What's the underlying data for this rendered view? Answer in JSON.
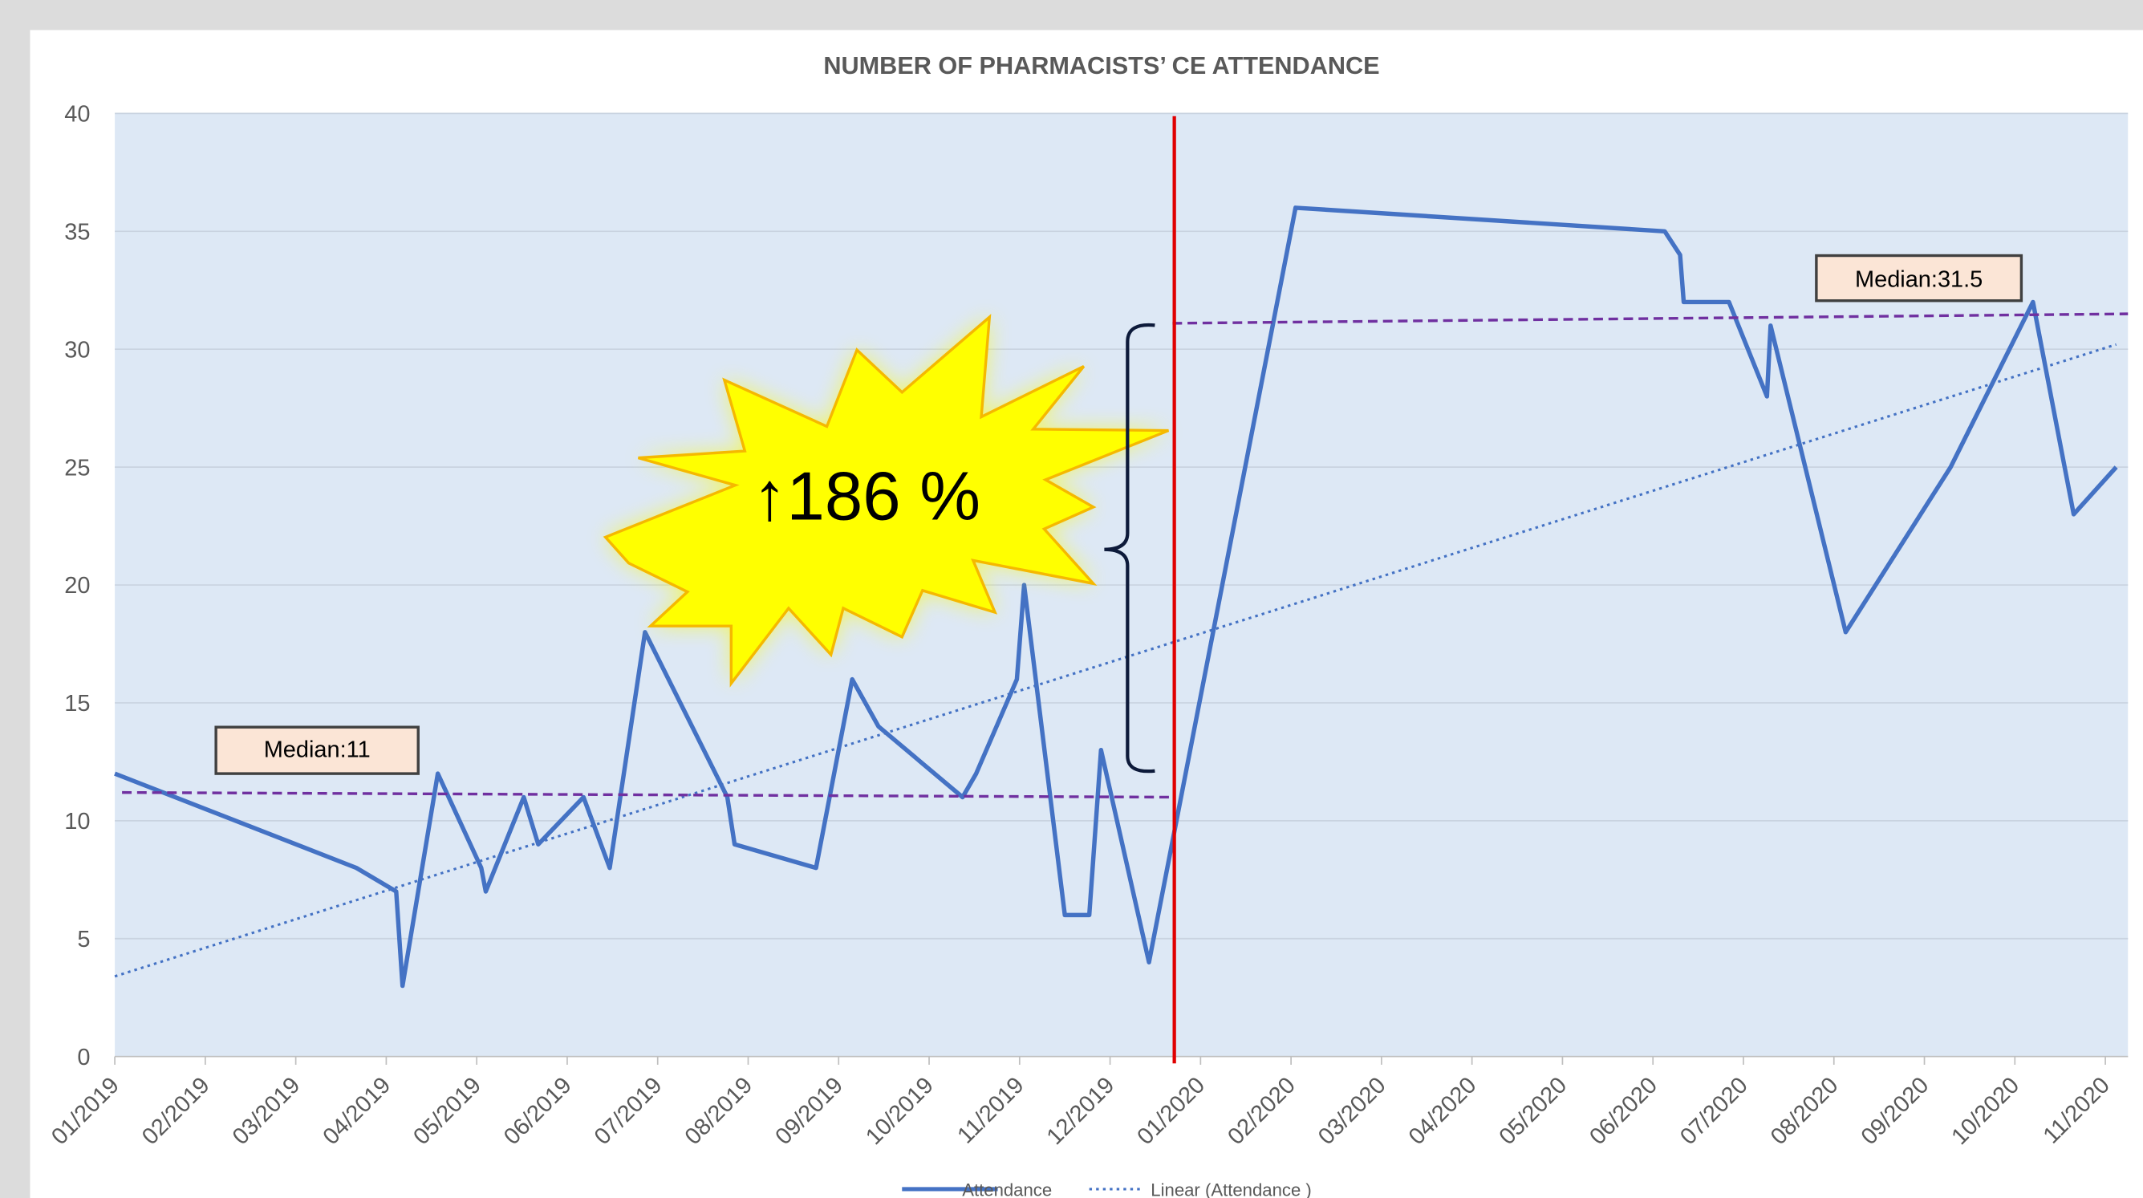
{
  "chart_data": {
    "type": "line",
    "title": "NUMBER OF PHARMACISTS’ CE ATTENDANCE",
    "xlim": [
      0,
      22.25
    ],
    "ylim": [
      0,
      40
    ],
    "yticks": [
      0,
      5,
      10,
      15,
      20,
      25,
      30,
      35,
      40
    ],
    "xticks": [
      {
        "value": 0,
        "label": "01/2019"
      },
      {
        "value": 1,
        "label": "02/2019"
      },
      {
        "value": 2,
        "label": "03/2019"
      },
      {
        "value": 3,
        "label": "04/2019"
      },
      {
        "value": 4,
        "label": "05/2019"
      },
      {
        "value": 5,
        "label": "06/2019"
      },
      {
        "value": 6,
        "label": "07/2019"
      },
      {
        "value": 7,
        "label": "08/2019"
      },
      {
        "value": 8,
        "label": "09/2019"
      },
      {
        "value": 9,
        "label": "10/2019"
      },
      {
        "value": 10,
        "label": "11/2019"
      },
      {
        "value": 11,
        "label": "12/2019"
      },
      {
        "value": 12,
        "label": "01/2020"
      },
      {
        "value": 13,
        "label": "02/2020"
      },
      {
        "value": 14,
        "label": "03/2020"
      },
      {
        "value": 15,
        "label": "04/2020"
      },
      {
        "value": 16,
        "label": "05/2020"
      },
      {
        "value": 17,
        "label": "06/2020"
      },
      {
        "value": 18,
        "label": "07/2020"
      },
      {
        "value": 19,
        "label": "08/2020"
      },
      {
        "value": 20,
        "label": "09/2020"
      },
      {
        "value": 21,
        "label": "10/2020"
      },
      {
        "value": 22,
        "label": "11/2020"
      }
    ],
    "grid": true,
    "series": [
      {
        "name": "Attendance",
        "color": "#4472c4",
        "style": "solid",
        "x": [
          0,
          2.67,
          3.11,
          3.18,
          3.57,
          4.05,
          4.1,
          4.52,
          4.68,
          5.18,
          5.47,
          5.86,
          6.77,
          6.85,
          7.75,
          8.15,
          8.44,
          9.37,
          9.52,
          9.97,
          10.05,
          10.5,
          10.77,
          10.9,
          11.43,
          13.05,
          17.13,
          17.3,
          17.34,
          17.84,
          18.26,
          18.3,
          19.13,
          20.29,
          21.2,
          21.65,
          22.12
        ],
        "values": [
          12,
          8,
          7,
          3,
          12,
          8,
          7,
          11,
          9,
          11,
          8,
          18,
          11,
          9,
          8,
          16,
          14,
          11,
          12,
          16,
          20,
          6,
          6,
          13,
          4,
          36,
          35,
          34,
          32,
          32,
          28,
          31,
          18,
          25,
          32,
          23,
          25
        ]
      },
      {
        "name": "Linear (Attendance )",
        "color": "#4472c4",
        "style": "dotted",
        "x": [
          0,
          22.12
        ],
        "values": [
          3.4,
          30.2
        ]
      }
    ],
    "medians": [
      {
        "label": "Median:11",
        "x": [
          0.08,
          11.69
        ],
        "values": [
          11.2,
          11.0
        ]
      },
      {
        "label": "Median:31.5",
        "x": [
          11.69,
          22.25
        ],
        "values": [
          31.1,
          31.5
        ]
      }
    ],
    "vline": 11.71,
    "annotation": "↑186 %"
  }
}
